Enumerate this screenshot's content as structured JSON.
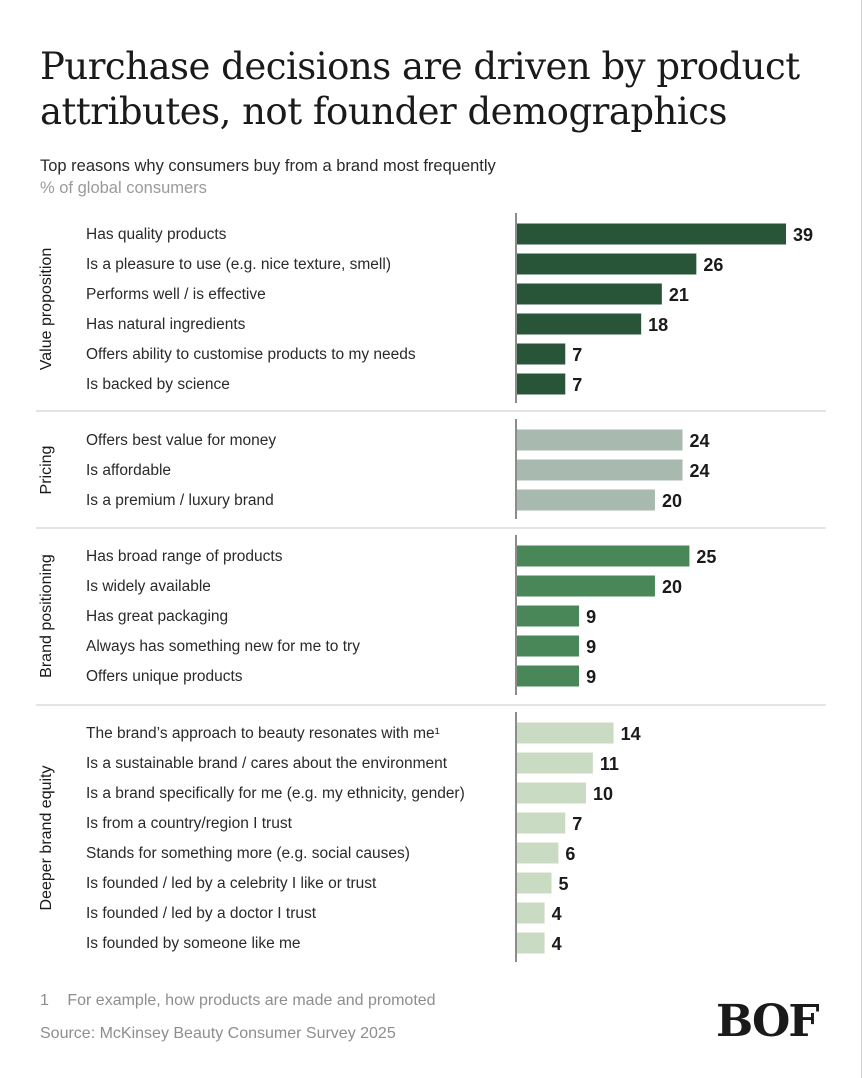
{
  "title": "Purchase decisions are driven by product attributes, not founder demographics",
  "subtitle": "Top reasons why consumers buy from a brand most frequently",
  "unit_label": "% of global consumers",
  "footnote": {
    "number": "1",
    "text": "For example, how products are made and promoted"
  },
  "source": "Source: McKinsey Beauty Consumer Survey 2025",
  "logo": "BOF",
  "chart_data": {
    "type": "bar",
    "orientation": "horizontal",
    "xlim": [
      0,
      39
    ],
    "groups": [
      {
        "name": "Value proposition",
        "color": "#285438",
        "categories": [
          "Has quality products",
          "Is a pleasure to use (e.g. nice texture, smell)",
          "Performs well / is effective",
          "Has natural ingredients",
          "Offers ability to customise products to my needs",
          "Is backed by science"
        ],
        "values": [
          39,
          26,
          21,
          18,
          7,
          7
        ]
      },
      {
        "name": "Pricing",
        "color": "#a8b9b0",
        "categories": [
          "Offers best value for money",
          "Is affordable",
          "Is a premium / luxury brand"
        ],
        "values": [
          24,
          24,
          20
        ]
      },
      {
        "name": "Brand positioning",
        "color": "#4a8758",
        "categories": [
          "Has broad range of products",
          "Is widely available",
          "Has great packaging",
          "Always has something new for me to try",
          "Offers unique products"
        ],
        "values": [
          25,
          20,
          9,
          9,
          9
        ]
      },
      {
        "name": "Deeper brand equity",
        "color": "#c9dbc2",
        "categories": [
          "The brand’s approach to beauty resonates with me¹",
          "Is a sustainable brand / cares about the environment",
          "Is a brand specifically for me (e.g. my ethnicity, gender)",
          "Is from a country/region I trust",
          "Stands for something more (e.g. social causes)",
          "Is founded / led by a celebrity I like or trust",
          "Is founded / led by a doctor I trust",
          "Is founded by someone like me"
        ],
        "values": [
          14,
          11,
          10,
          7,
          6,
          5,
          4,
          4
        ]
      }
    ]
  }
}
